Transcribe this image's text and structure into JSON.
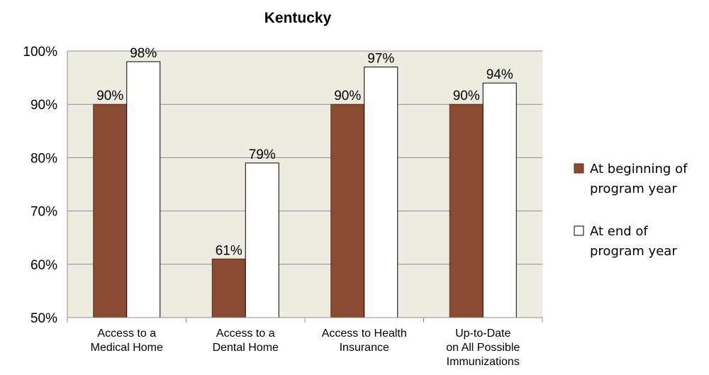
{
  "chart_data": {
    "type": "bar",
    "title": "Kentucky",
    "categories": [
      [
        "Access to a",
        "Medical Home"
      ],
      [
        "Access to a",
        "Dental Home"
      ],
      [
        "Access to Health",
        "Insurance"
      ],
      [
        "Up-to-Date",
        "on All Possible",
        "Immunizations"
      ]
    ],
    "series": [
      {
        "name": [
          "At beginning of",
          "program year"
        ],
        "values": [
          90,
          61,
          90,
          90
        ],
        "labels": [
          "90%",
          "61%",
          "90%",
          "90%"
        ],
        "color": "#8B4A32"
      },
      {
        "name": [
          "At end of",
          "program year"
        ],
        "values": [
          98,
          79,
          97,
          94
        ],
        "labels": [
          "98%",
          "79%",
          "97%",
          "94%"
        ],
        "color": "#FFFFFF"
      }
    ],
    "ylim": [
      50,
      100
    ],
    "yticks": [
      "100%",
      "90%",
      "80%",
      "70%",
      "60%",
      "50%"
    ],
    "ytick_values": [
      100,
      90,
      80,
      70,
      60,
      50
    ],
    "grid": true,
    "plot_background": "#EEECE1",
    "legend_position": "right"
  }
}
